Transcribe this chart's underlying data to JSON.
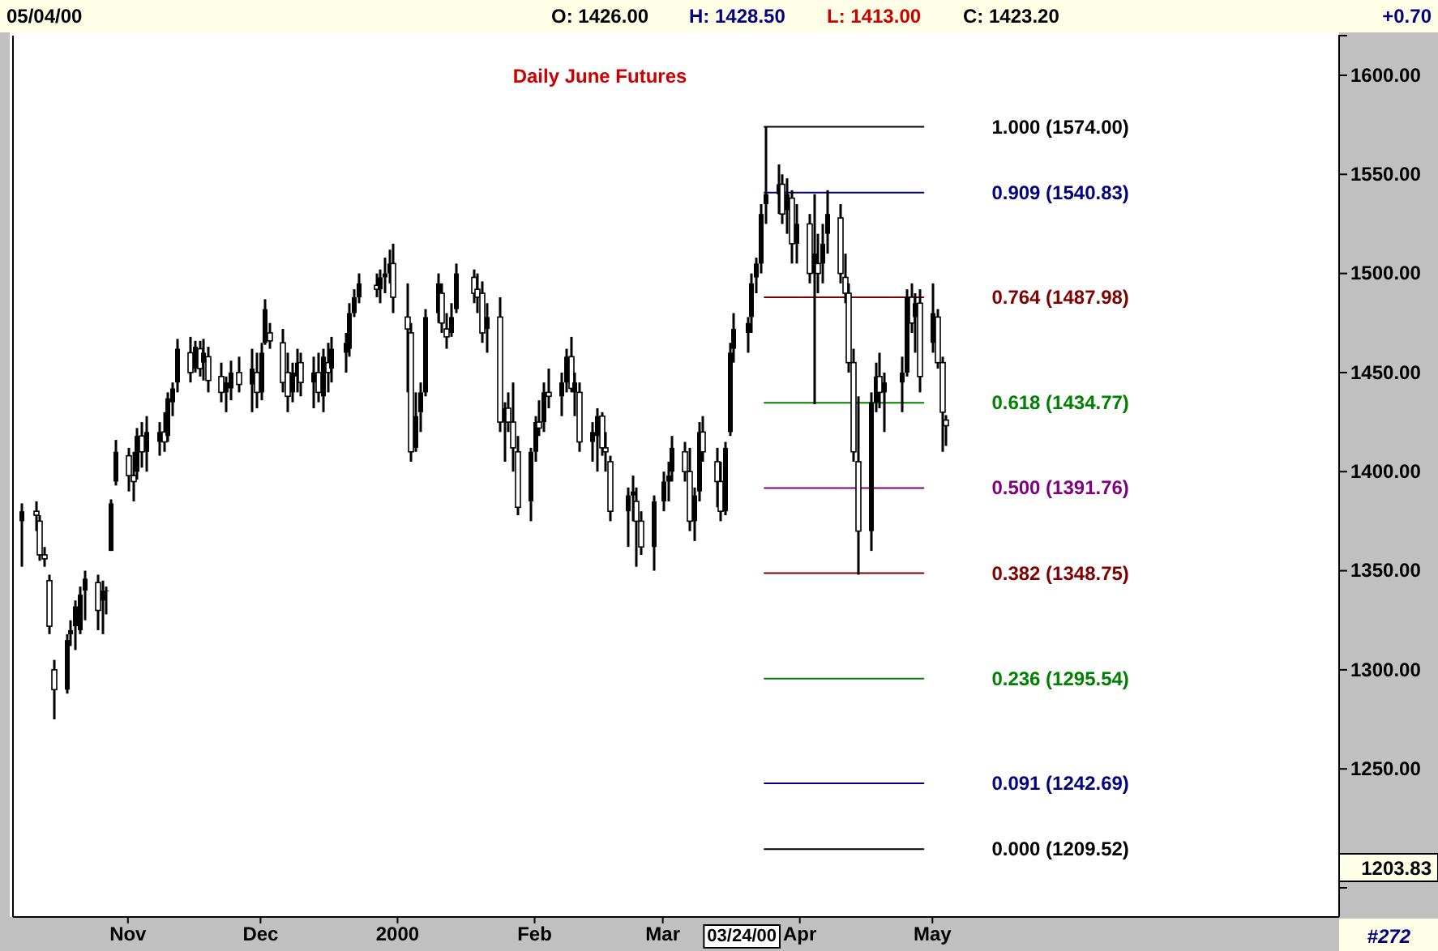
{
  "chart_data": {
    "type": "candlestick",
    "title": "Daily June Futures",
    "annotations": [
      "05/04/00",
      "O: 1426.00",
      "H: 1428.50",
      "L: 1413.00",
      "C: 1423.20",
      "+0.70",
      "1203.83",
      "#272",
      "03/24/00"
    ],
    "x": [
      "1999-10-08",
      "1999-10-11",
      "1999-10-12",
      "1999-10-13",
      "1999-10-14",
      "1999-10-15",
      "1999-10-18",
      "1999-10-19",
      "1999-10-20",
      "1999-10-21",
      "1999-10-22",
      "1999-10-25",
      "1999-10-26",
      "1999-10-27",
      "1999-10-28",
      "1999-10-29",
      "1999-11-01",
      "1999-11-02",
      "1999-11-03",
      "1999-11-04",
      "1999-11-05",
      "1999-11-08",
      "1999-11-09",
      "1999-11-10",
      "1999-11-11",
      "1999-11-12",
      "1999-11-15",
      "1999-11-16",
      "1999-11-17",
      "1999-11-18",
      "1999-11-19",
      "1999-11-22",
      "1999-11-23",
      "1999-11-24",
      "1999-11-26",
      "1999-11-29",
      "1999-11-30",
      "1999-12-01",
      "1999-12-02",
      "1999-12-03",
      "1999-12-06",
      "1999-12-07",
      "1999-12-08",
      "1999-12-09",
      "1999-12-10",
      "1999-12-13",
      "1999-12-14",
      "1999-12-15",
      "1999-12-16",
      "1999-12-17",
      "1999-12-20",
      "1999-12-21",
      "1999-12-22",
      "1999-12-23",
      "1999-12-27",
      "1999-12-28",
      "1999-12-29",
      "1999-12-30",
      "1999-12-31",
      "2000-01-03",
      "2000-01-04",
      "2000-01-05",
      "2000-01-06",
      "2000-01-07",
      "2000-01-10",
      "2000-01-11",
      "2000-01-12",
      "2000-01-13",
      "2000-01-14",
      "2000-01-18",
      "2000-01-19",
      "2000-01-20",
      "2000-01-21",
      "2000-01-24",
      "2000-01-25",
      "2000-01-26",
      "2000-01-27",
      "2000-01-28",
      "2000-01-31",
      "2000-02-01",
      "2000-02-02",
      "2000-02-03",
      "2000-02-04",
      "2000-02-07",
      "2000-02-08",
      "2000-02-09",
      "2000-02-10",
      "2000-02-11",
      "2000-02-14",
      "2000-02-15",
      "2000-02-16",
      "2000-02-17",
      "2000-02-18",
      "2000-02-22",
      "2000-02-23",
      "2000-02-24",
      "2000-02-25",
      "2000-02-28",
      "2000-03-01",
      "2000-03-02",
      "2000-03-03",
      "2000-03-06",
      "2000-03-07",
      "2000-03-08",
      "2000-03-09",
      "2000-03-10",
      "2000-03-13",
      "2000-03-14",
      "2000-03-15",
      "2000-03-16",
      "2000-03-17",
      "2000-03-20",
      "2000-03-21",
      "2000-03-22",
      "2000-03-23",
      "2000-03-24",
      "2000-03-27",
      "2000-03-28",
      "2000-03-29",
      "2000-03-30",
      "2000-03-31",
      "2000-04-03",
      "2000-04-04",
      "2000-04-05",
      "2000-04-06",
      "2000-04-07",
      "2000-04-10",
      "2000-04-11",
      "2000-04-12",
      "2000-04-13",
      "2000-04-14",
      "2000-04-17",
      "2000-04-18",
      "2000-04-19",
      "2000-04-20",
      "2000-04-24",
      "2000-04-25",
      "2000-04-26",
      "2000-04-27",
      "2000-04-28",
      "2000-05-01",
      "2000-05-02",
      "2000-05-03",
      "2000-05-04"
    ],
    "ohlc": [
      [
        1375,
        1384,
        1352,
        1380
      ],
      [
        1380,
        1385,
        1370,
        1378
      ],
      [
        1375,
        1378,
        1355,
        1358
      ],
      [
        1358,
        1362,
        1352,
        1356
      ],
      [
        1345,
        1348,
        1318,
        1322
      ],
      [
        1300,
        1305,
        1275,
        1290
      ],
      [
        1290,
        1318,
        1288,
        1315
      ],
      [
        1318,
        1325,
        1312,
        1320
      ],
      [
        1322,
        1335,
        1310,
        1332
      ],
      [
        1320,
        1342,
        1318,
        1338
      ],
      [
        1340,
        1350,
        1325,
        1346
      ],
      [
        1344,
        1348,
        1320,
        1330
      ],
      [
        1335,
        1345,
        1318,
        1340
      ],
      [
        1340,
        1342,
        1328,
        1340
      ],
      [
        1360,
        1386,
        1360,
        1384
      ],
      [
        1395,
        1416,
        1393,
        1410
      ],
      [
        1408,
        1412,
        1390,
        1398
      ],
      [
        1398,
        1410,
        1385,
        1395
      ],
      [
        1400,
        1422,
        1396,
        1418
      ],
      [
        1418,
        1425,
        1402,
        1410
      ],
      [
        1410,
        1428,
        1400,
        1420
      ],
      [
        1415,
        1425,
        1408,
        1420
      ],
      [
        1420,
        1430,
        1410,
        1415
      ],
      [
        1418,
        1440,
        1415,
        1437
      ],
      [
        1435,
        1445,
        1428,
        1442
      ],
      [
        1445,
        1467,
        1440,
        1462
      ],
      [
        1460,
        1468,
        1445,
        1450
      ],
      [
        1452,
        1466,
        1450,
        1463
      ],
      [
        1462,
        1466,
        1448,
        1452
      ],
      [
        1455,
        1467,
        1446,
        1460
      ],
      [
        1458,
        1463,
        1440,
        1446
      ],
      [
        1448,
        1455,
        1435,
        1440
      ],
      [
        1440,
        1448,
        1430,
        1445
      ],
      [
        1442,
        1456,
        1436,
        1450
      ],
      [
        1450,
        1458,
        1440,
        1444
      ],
      [
        1444,
        1462,
        1430,
        1452
      ],
      [
        1450,
        1460,
        1432,
        1440
      ],
      [
        1440,
        1465,
        1436,
        1460
      ],
      [
        1465,
        1487,
        1464,
        1482
      ],
      [
        1470,
        1475,
        1462,
        1466
      ],
      [
        1465,
        1472,
        1440,
        1445
      ],
      [
        1450,
        1460,
        1430,
        1438
      ],
      [
        1440,
        1455,
        1435,
        1450
      ],
      [
        1448,
        1462,
        1440,
        1455
      ],
      [
        1455,
        1460,
        1438,
        1445
      ],
      [
        1445,
        1458,
        1432,
        1450
      ],
      [
        1450,
        1460,
        1435,
        1440
      ],
      [
        1438,
        1462,
        1430,
        1458
      ],
      [
        1455,
        1465,
        1440,
        1450
      ],
      [
        1452,
        1468,
        1445,
        1462
      ],
      [
        1460,
        1470,
        1450,
        1465
      ],
      [
        1462,
        1485,
        1458,
        1480
      ],
      [
        1480,
        1492,
        1478,
        1488
      ],
      [
        1488,
        1500,
        1485,
        1495
      ],
      [
        1494,
        1500,
        1488,
        1492
      ],
      [
        1492,
        1502,
        1485,
        1498
      ],
      [
        1498,
        1508,
        1490,
        1500
      ],
      [
        1500,
        1512,
        1495,
        1505
      ],
      [
        1505,
        1515,
        1480,
        1488
      ],
      [
        1478,
        1495,
        1440,
        1472
      ],
      [
        1470,
        1475,
        1405,
        1410
      ],
      [
        1412,
        1440,
        1410,
        1428
      ],
      [
        1430,
        1445,
        1420,
        1440
      ],
      [
        1440,
        1482,
        1438,
        1478
      ],
      [
        1480,
        1500,
        1475,
        1495
      ],
      [
        1490,
        1495,
        1470,
        1475
      ],
      [
        1472,
        1480,
        1462,
        1468
      ],
      [
        1470,
        1485,
        1468,
        1478
      ],
      [
        1482,
        1505,
        1480,
        1500
      ],
      [
        1498,
        1502,
        1485,
        1490
      ],
      [
        1492,
        1500,
        1480,
        1488
      ],
      [
        1490,
        1496,
        1465,
        1470
      ],
      [
        1472,
        1485,
        1460,
        1478
      ],
      [
        1478,
        1488,
        1420,
        1425
      ],
      [
        1425,
        1435,
        1405,
        1432
      ],
      [
        1432,
        1440,
        1420,
        1425
      ],
      [
        1425,
        1445,
        1400,
        1412
      ],
      [
        1410,
        1418,
        1378,
        1382
      ],
      [
        1385,
        1412,
        1375,
        1410
      ],
      [
        1410,
        1428,
        1405,
        1425
      ],
      [
        1425,
        1436,
        1418,
        1422
      ],
      [
        1425,
        1445,
        1420,
        1440
      ],
      [
        1440,
        1452,
        1432,
        1438
      ],
      [
        1438,
        1450,
        1428,
        1445
      ],
      [
        1445,
        1462,
        1440,
        1458
      ],
      [
        1458,
        1468,
        1440,
        1442
      ],
      [
        1440,
        1450,
        1428,
        1445
      ],
      [
        1440,
        1445,
        1410,
        1415
      ],
      [
        1415,
        1425,
        1405,
        1420
      ],
      [
        1418,
        1432,
        1400,
        1428
      ],
      [
        1428,
        1430,
        1408,
        1412
      ],
      [
        1412,
        1420,
        1400,
        1410
      ],
      [
        1405,
        1408,
        1375,
        1380
      ],
      [
        1380,
        1392,
        1362,
        1388
      ],
      [
        1388,
        1398,
        1375,
        1390
      ],
      [
        1385,
        1392,
        1352,
        1375
      ],
      [
        1375,
        1380,
        1358,
        1362
      ],
      [
        1362,
        1388,
        1350,
        1385
      ],
      [
        1385,
        1400,
        1380,
        1395
      ],
      [
        1395,
        1405,
        1385,
        1398
      ],
      [
        1400,
        1418,
        1395,
        1412
      ],
      [
        1410,
        1415,
        1395,
        1400
      ],
      [
        1400,
        1412,
        1370,
        1375
      ],
      [
        1375,
        1392,
        1365,
        1388
      ],
      [
        1390,
        1425,
        1385,
        1420
      ],
      [
        1420,
        1428,
        1405,
        1410
      ],
      [
        1405,
        1412,
        1382,
        1395
      ],
      [
        1395,
        1405,
        1375,
        1380
      ],
      [
        1380,
        1415,
        1378,
        1412
      ],
      [
        1420,
        1465,
        1418,
        1460
      ],
      [
        1462,
        1480,
        1455,
        1472
      ],
      [
        1470,
        1478,
        1460,
        1475
      ],
      [
        1478,
        1500,
        1470,
        1495
      ],
      [
        1498,
        1508,
        1490,
        1505
      ],
      [
        1505,
        1535,
        1500,
        1530
      ],
      [
        1535,
        1574,
        1525,
        1540
      ],
      [
        1540,
        1555,
        1530,
        1545
      ],
      [
        1545,
        1550,
        1525,
        1530
      ],
      [
        1532,
        1548,
        1520,
        1540
      ],
      [
        1538,
        1542,
        1505,
        1515
      ],
      [
        1515,
        1535,
        1505,
        1525
      ],
      [
        1525,
        1530,
        1495,
        1500
      ],
      [
        1500,
        1540,
        1434,
        1510
      ],
      [
        1505,
        1520,
        1490,
        1500
      ],
      [
        1505,
        1525,
        1495,
        1515
      ],
      [
        1520,
        1542,
        1510,
        1530
      ],
      [
        1528,
        1535,
        1495,
        1500
      ],
      [
        1498,
        1510,
        1485,
        1490
      ],
      [
        1490,
        1495,
        1450,
        1455
      ],
      [
        1455,
        1462,
        1405,
        1410
      ],
      [
        1405,
        1438,
        1348,
        1370
      ],
      [
        1370,
        1440,
        1360,
        1435
      ],
      [
        1435,
        1455,
        1430,
        1448
      ],
      [
        1448,
        1460,
        1432,
        1440
      ],
      [
        1440,
        1450,
        1420,
        1445
      ],
      [
        1445,
        1458,
        1430,
        1450
      ],
      [
        1450,
        1492,
        1448,
        1488
      ],
      [
        1488,
        1495,
        1470,
        1475
      ],
      [
        1478,
        1490,
        1460,
        1485
      ],
      [
        1485,
        1492,
        1440,
        1448
      ],
      [
        1465,
        1495,
        1460,
        1480
      ],
      [
        1478,
        1482,
        1452,
        1455
      ],
      [
        1455,
        1458,
        1410,
        1430
      ],
      [
        1426,
        1428.5,
        1413,
        1423.2
      ]
    ],
    "color": "#000000",
    "series": [
      {
        "type": "line",
        "name": "1.000 (1574.00)",
        "color": "#000000",
        "x": [
          "2000-03-24",
          "2000-04-29"
        ],
        "values": [
          1574,
          1574
        ]
      },
      {
        "type": "line",
        "name": "0.909 (1540.83)",
        "color": "#000080",
        "x": [
          "2000-03-24",
          "2000-04-29"
        ],
        "values": [
          1540.83,
          1540.83
        ]
      },
      {
        "type": "line",
        "name": "0.764 (1487.98)",
        "color": "#800000",
        "x": [
          "2000-03-24",
          "2000-04-29"
        ],
        "values": [
          1487.98,
          1487.98
        ]
      },
      {
        "type": "line",
        "name": "0.618 (1434.77)",
        "color": "#008000",
        "x": [
          "2000-03-24",
          "2000-04-29"
        ],
        "values": [
          1434.77,
          1434.77
        ]
      },
      {
        "type": "line",
        "name": "0.500 (1391.76)",
        "color": "#800080",
        "x": [
          "2000-03-24",
          "2000-04-29"
        ],
        "values": [
          1391.76,
          1391.76
        ]
      },
      {
        "type": "line",
        "name": "0.382 (1348.75)",
        "color": "#800000",
        "x": [
          "2000-03-24",
          "2000-04-29"
        ],
        "values": [
          1348.75,
          1348.75
        ]
      },
      {
        "type": "line",
        "name": "0.236 (1295.54)",
        "color": "#008000",
        "x": [
          "2000-03-24",
          "2000-04-29"
        ],
        "values": [
          1295.54,
          1295.54
        ]
      },
      {
        "type": "line",
        "name": "0.091 (1242.69)",
        "color": "#000080",
        "x": [
          "2000-03-24",
          "2000-04-29"
        ],
        "values": [
          1242.69,
          1242.69
        ]
      },
      {
        "type": "line",
        "name": "0.000 (1209.52)",
        "color": "#000000",
        "x": [
          "2000-03-24",
          "2000-04-29"
        ],
        "values": [
          1209.52,
          1209.52
        ]
      }
    ],
    "xlim": [
      "1999-10-06",
      "2000-08-01"
    ],
    "xticks": [
      {
        "value": "1999-11-01",
        "label": "Nov"
      },
      {
        "value": "1999-12-01",
        "label": "Dec"
      },
      {
        "value": "2000-01-01",
        "label": "2000"
      },
      {
        "value": "2000-02-01",
        "label": "Feb"
      },
      {
        "value": "2000-03-01",
        "label": "Mar"
      },
      {
        "value": "2000-04-01",
        "label": "Apr"
      },
      {
        "value": "2000-05-01",
        "label": "May"
      }
    ],
    "ylim": [
      1190,
      1620
    ],
    "yticks": [
      {
        "value": 1250,
        "label": "1250.00"
      },
      {
        "value": 1300,
        "label": "1300.00"
      },
      {
        "value": 1350,
        "label": "1350.00"
      },
      {
        "value": 1400,
        "label": "1400.00"
      },
      {
        "value": 1450,
        "label": "1450.00"
      },
      {
        "value": 1500,
        "label": "1500.00"
      },
      {
        "value": 1550,
        "label": "1550.00"
      },
      {
        "value": 1600,
        "label": "1600.00"
      }
    ],
    "grid": false
  }
}
